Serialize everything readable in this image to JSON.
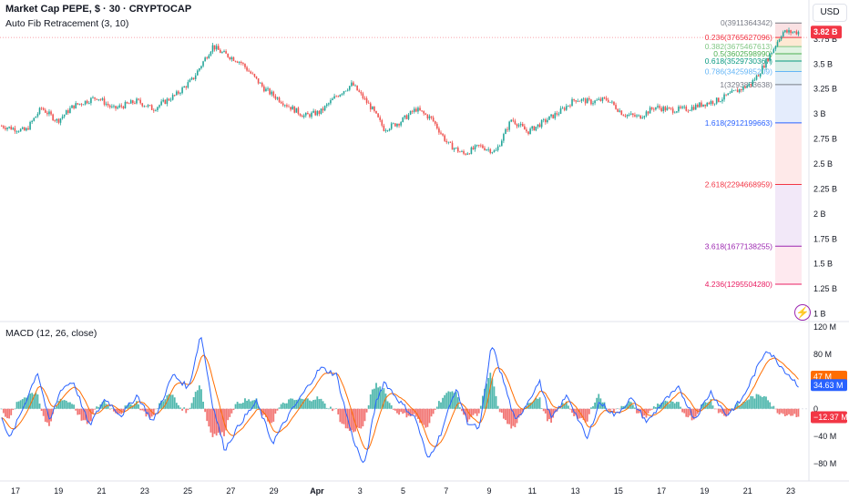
{
  "header": {
    "title": "Market Cap PEPE, $ · 30 · CRYPTOCAP",
    "indicator": "Auto Fib Retracement (3, 10)",
    "macd_label": "MACD (12, 26, close)",
    "currency": "USD"
  },
  "colors": {
    "up": "#26a69a",
    "down": "#ef5350",
    "macd_line": "#2962ff",
    "signal_line": "#ff6d00",
    "price_badge": "#f23645"
  },
  "chart_data": [
    {
      "type": "candlestick",
      "title": "Market Cap PEPE, $ · 30 · CRYPTOCAP",
      "ylim": [
        0.95,
        4.05
      ],
      "y_ticks": [
        "4 B",
        "3.75 B",
        "3.5 B",
        "3.25 B",
        "3 B",
        "2.75 B",
        "2.5 B",
        "2.25 B",
        "2 B",
        "1.75 B",
        "1.5 B",
        "1.25 B",
        "1 B"
      ],
      "y_tick_values": [
        4,
        3.75,
        3.5,
        3.25,
        3,
        2.75,
        2.5,
        2.25,
        2,
        1.75,
        1.5,
        1.25,
        1
      ],
      "x_ticks": [
        "17",
        "19",
        "21",
        "23",
        "25",
        "27",
        "29",
        "Apr",
        "3",
        "5",
        "7",
        "9",
        "11",
        "13",
        "15",
        "17",
        "19",
        "21",
        "23"
      ],
      "last_price_label": "3.82 B",
      "last_price": 3.82,
      "price_path": [
        {
          "t": 0,
          "v": 2.88
        },
        {
          "t": 0.03,
          "v": 2.83
        },
        {
          "t": 0.05,
          "v": 3.06
        },
        {
          "t": 0.07,
          "v": 2.93
        },
        {
          "t": 0.09,
          "v": 3.08
        },
        {
          "t": 0.12,
          "v": 3.17
        },
        {
          "t": 0.14,
          "v": 3.05
        },
        {
          "t": 0.17,
          "v": 3.13
        },
        {
          "t": 0.19,
          "v": 3.05
        },
        {
          "t": 0.22,
          "v": 3.2
        },
        {
          "t": 0.24,
          "v": 3.35
        },
        {
          "t": 0.255,
          "v": 3.55
        },
        {
          "t": 0.265,
          "v": 3.68
        },
        {
          "t": 0.275,
          "v": 3.62
        },
        {
          "t": 0.3,
          "v": 3.52
        },
        {
          "t": 0.33,
          "v": 3.25
        },
        {
          "t": 0.36,
          "v": 3.08
        },
        {
          "t": 0.38,
          "v": 2.98
        },
        {
          "t": 0.4,
          "v": 3.02
        },
        {
          "t": 0.42,
          "v": 3.18
        },
        {
          "t": 0.44,
          "v": 3.3
        },
        {
          "t": 0.455,
          "v": 3.15
        },
        {
          "t": 0.465,
          "v": 3.05
        },
        {
          "t": 0.48,
          "v": 2.85
        },
        {
          "t": 0.5,
          "v": 2.92
        },
        {
          "t": 0.52,
          "v": 3.05
        },
        {
          "t": 0.54,
          "v": 2.95
        },
        {
          "t": 0.56,
          "v": 2.7
        },
        {
          "t": 0.58,
          "v": 2.6
        },
        {
          "t": 0.6,
          "v": 2.68
        },
        {
          "t": 0.62,
          "v": 2.62
        },
        {
          "t": 0.64,
          "v": 2.95
        },
        {
          "t": 0.66,
          "v": 2.82
        },
        {
          "t": 0.68,
          "v": 2.92
        },
        {
          "t": 0.7,
          "v": 3.02
        },
        {
          "t": 0.72,
          "v": 3.15
        },
        {
          "t": 0.74,
          "v": 3.12
        },
        {
          "t": 0.76,
          "v": 3.15
        },
        {
          "t": 0.78,
          "v": 3.0
        },
        {
          "t": 0.8,
          "v": 2.97
        },
        {
          "t": 0.82,
          "v": 3.07
        },
        {
          "t": 0.84,
          "v": 3.04
        },
        {
          "t": 0.86,
          "v": 3.05
        },
        {
          "t": 0.88,
          "v": 3.1
        },
        {
          "t": 0.9,
          "v": 3.14
        },
        {
          "t": 0.92,
          "v": 3.22
        },
        {
          "t": 0.94,
          "v": 3.3
        },
        {
          "t": 0.95,
          "v": 3.4
        },
        {
          "t": 0.965,
          "v": 3.6
        },
        {
          "t": 0.98,
          "v": 3.82
        },
        {
          "t": 1.0,
          "v": 3.82
        }
      ]
    },
    {
      "type": "fib_retracement",
      "levels": [
        {
          "label": "0(3911364342)",
          "value": 3.911,
          "color": "#787b86"
        },
        {
          "label": "0.236(3765627096)",
          "value": 3.766,
          "color": "#f23645"
        },
        {
          "label": "0.382(3675467613)",
          "value": 3.675,
          "color": "#81c784"
        },
        {
          "label": "0.5(3602598990)",
          "value": 3.603,
          "color": "#4caf50"
        },
        {
          "label": "0.618(3529730367)",
          "value": 3.53,
          "color": "#089981"
        },
        {
          "label": "0.786(3425985209)",
          "value": 3.426,
          "color": "#64b5f6"
        },
        {
          "label": "1(3293833638)",
          "value": 3.294,
          "color": "#787b86"
        },
        {
          "label": "1.618(2912199663)",
          "value": 2.912,
          "color": "#2962ff"
        },
        {
          "label": "2.618(2294668959)",
          "value": 2.295,
          "color": "#f23645"
        },
        {
          "label": "3.618(1677138255)",
          "value": 1.677,
          "color": "#9c27b0"
        },
        {
          "label": "4.236(1295504280)",
          "value": 1.296,
          "color": "#e91e63"
        }
      ]
    },
    {
      "type": "line",
      "title": "MACD (12, 26, close)",
      "ylim": [
        -95,
        125
      ],
      "y_ticks": [
        "120 M",
        "80 M",
        "40 M",
        "0",
        "−40 M",
        "−80 M"
      ],
      "y_tick_values": [
        120,
        80,
        40,
        0,
        -40,
        -80
      ],
      "value_labels": [
        {
          "label": "47 M",
          "value": 47,
          "color": "#ff6d00"
        },
        {
          "label": "34.63 M",
          "value": 34.63,
          "color": "#2962ff"
        },
        {
          "label": "−12.37 M",
          "value": -12.37,
          "color": "#f23645"
        }
      ],
      "macd_path": [
        {
          "t": 0,
          "v": -10
        },
        {
          "t": 0.01,
          "v": -45
        },
        {
          "t": 0.03,
          "v": 10
        },
        {
          "t": 0.045,
          "v": 55
        },
        {
          "t": 0.06,
          "v": -20
        },
        {
          "t": 0.075,
          "v": 30
        },
        {
          "t": 0.09,
          "v": 40
        },
        {
          "t": 0.11,
          "v": -25
        },
        {
          "t": 0.13,
          "v": 15
        },
        {
          "t": 0.15,
          "v": -10
        },
        {
          "t": 0.17,
          "v": 20
        },
        {
          "t": 0.19,
          "v": -20
        },
        {
          "t": 0.215,
          "v": 50
        },
        {
          "t": 0.235,
          "v": 30
        },
        {
          "t": 0.25,
          "v": 110
        },
        {
          "t": 0.265,
          "v": 5
        },
        {
          "t": 0.28,
          "v": -60
        },
        {
          "t": 0.3,
          "v": -20
        },
        {
          "t": 0.32,
          "v": 10
        },
        {
          "t": 0.34,
          "v": -50
        },
        {
          "t": 0.36,
          "v": -10
        },
        {
          "t": 0.38,
          "v": 25
        },
        {
          "t": 0.4,
          "v": 60
        },
        {
          "t": 0.42,
          "v": 50
        },
        {
          "t": 0.44,
          "v": -40
        },
        {
          "t": 0.455,
          "v": -85
        },
        {
          "t": 0.47,
          "v": 10
        },
        {
          "t": 0.48,
          "v": 40
        },
        {
          "t": 0.5,
          "v": 10
        },
        {
          "t": 0.52,
          "v": -15
        },
        {
          "t": 0.535,
          "v": -75
        },
        {
          "t": 0.55,
          "v": -40
        },
        {
          "t": 0.57,
          "v": 30
        },
        {
          "t": 0.585,
          "v": -20
        },
        {
          "t": 0.6,
          "v": -30
        },
        {
          "t": 0.615,
          "v": 95
        },
        {
          "t": 0.63,
          "v": 40
        },
        {
          "t": 0.645,
          "v": -20
        },
        {
          "t": 0.66,
          "v": 10
        },
        {
          "t": 0.675,
          "v": 40
        },
        {
          "t": 0.69,
          "v": -15
        },
        {
          "t": 0.71,
          "v": 20
        },
        {
          "t": 0.735,
          "v": -45
        },
        {
          "t": 0.75,
          "v": 10
        },
        {
          "t": 0.77,
          "v": -10
        },
        {
          "t": 0.79,
          "v": 15
        },
        {
          "t": 0.81,
          "v": -20
        },
        {
          "t": 0.83,
          "v": 10
        },
        {
          "t": 0.85,
          "v": 30
        },
        {
          "t": 0.87,
          "v": -15
        },
        {
          "t": 0.89,
          "v": 25
        },
        {
          "t": 0.91,
          "v": -10
        },
        {
          "t": 0.93,
          "v": 15
        },
        {
          "t": 0.96,
          "v": 88
        },
        {
          "t": 0.98,
          "v": 60
        },
        {
          "t": 1.0,
          "v": 34.63
        }
      ]
    }
  ]
}
